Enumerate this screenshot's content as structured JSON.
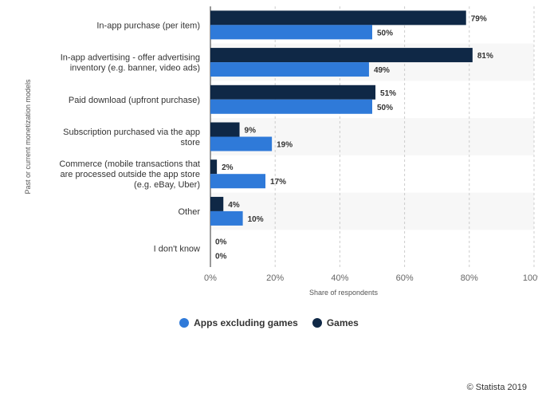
{
  "chart_data": {
    "type": "bar",
    "orientation": "horizontal",
    "categories": [
      [
        "In-app purchase (per item)"
      ],
      [
        "In-app advertising - offer advertising",
        "inventory (e.g. banner, video ads)"
      ],
      [
        "Paid download (upfront purchase)"
      ],
      [
        "Subscription purchased via the app",
        "store"
      ],
      [
        "Commerce (mobile transactions that",
        "are processed outside the app store",
        "(e.g. eBay, Uber)"
      ],
      [
        "Other"
      ],
      [
        "I don't know"
      ]
    ],
    "series": [
      {
        "name": "Games",
        "color": "#0f2846",
        "values": [
          79,
          81,
          51,
          9,
          2,
          4,
          0
        ],
        "labels": [
          "79%",
          "81%",
          "51%",
          "9%",
          "2%",
          "4%",
          "0%"
        ]
      },
      {
        "name": "Apps excluding games",
        "color": "#2f7ad9",
        "values": [
          50,
          49,
          50,
          19,
          17,
          10,
          0
        ],
        "labels": [
          "50%",
          "49%",
          "50%",
          "19%",
          "17%",
          "10%",
          "0%"
        ]
      }
    ],
    "xlim": [
      0,
      100
    ],
    "xticks": [
      "0%",
      "20%",
      "40%",
      "60%",
      "80%",
      "100%"
    ],
    "xlabel": "Share of respondents",
    "ylabel": "Past or current monetization models",
    "grid": true,
    "legend_position": "bottom-center"
  },
  "legend": {
    "items": [
      {
        "label": "Apps excluding games",
        "color": "#2f7ad9"
      },
      {
        "label": "Games",
        "color": "#0f2846"
      }
    ]
  },
  "credit": "© Statista 2019"
}
